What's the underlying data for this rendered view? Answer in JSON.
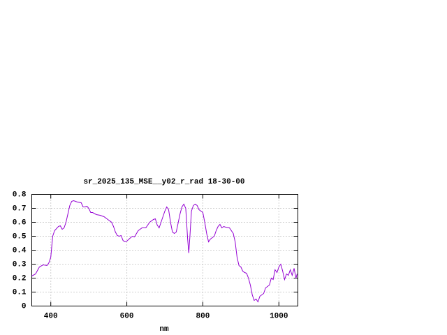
{
  "chart_data": {
    "type": "line",
    "title": "sr_2025_135_MSE__y02_r_rad 18-30-00",
    "x_label": "nm",
    "xlim": [
      350,
      1050
    ],
    "xticks": [
      400,
      600,
      800,
      1000
    ],
    "ylim": [
      0,
      0.8
    ],
    "yticks": [
      0,
      0.1,
      0.2,
      0.3,
      0.4,
      0.5,
      0.6,
      0.7,
      0.8
    ],
    "grid": true,
    "series": [
      {
        "color": "#9400d3",
        "x": [
          350,
          360,
          370,
          380,
          390,
          395,
          400,
          405,
          410,
          420,
          425,
          430,
          435,
          440,
          445,
          450,
          455,
          460,
          470,
          480,
          485,
          490,
          495,
          500,
          505,
          510,
          520,
          530,
          540,
          550,
          560,
          565,
          570,
          575,
          580,
          585,
          590,
          595,
          600,
          610,
          615,
          620,
          630,
          640,
          650,
          660,
          670,
          675,
          680,
          685,
          690,
          700,
          705,
          710,
          715,
          720,
          725,
          730,
          740,
          745,
          750,
          755,
          760,
          763,
          766,
          770,
          775,
          780,
          785,
          790,
          795,
          800,
          805,
          810,
          815,
          820,
          830,
          835,
          840,
          845,
          850,
          855,
          860,
          870,
          875,
          880,
          885,
          890,
          895,
          900,
          905,
          910,
          915,
          920,
          925,
          930,
          935,
          940,
          945,
          950,
          955,
          960,
          965,
          970,
          975,
          980,
          985,
          990,
          995,
          1000,
          1005,
          1010,
          1015,
          1020,
          1025,
          1030,
          1035,
          1040,
          1045,
          1048
        ],
        "values": [
          0.215,
          0.23,
          0.28,
          0.295,
          0.29,
          0.31,
          0.35,
          0.5,
          0.54,
          0.57,
          0.575,
          0.55,
          0.56,
          0.6,
          0.66,
          0.72,
          0.75,
          0.755,
          0.745,
          0.74,
          0.71,
          0.71,
          0.715,
          0.7,
          0.67,
          0.67,
          0.655,
          0.65,
          0.64,
          0.62,
          0.6,
          0.57,
          0.53,
          0.505,
          0.5,
          0.505,
          0.47,
          0.46,
          0.465,
          0.49,
          0.5,
          0.495,
          0.54,
          0.56,
          0.56,
          0.6,
          0.62,
          0.625,
          0.58,
          0.56,
          0.6,
          0.68,
          0.71,
          0.69,
          0.6,
          0.53,
          0.52,
          0.53,
          0.66,
          0.71,
          0.73,
          0.7,
          0.48,
          0.38,
          0.5,
          0.68,
          0.72,
          0.73,
          0.72,
          0.69,
          0.68,
          0.67,
          0.6,
          0.52,
          0.46,
          0.48,
          0.5,
          0.54,
          0.57,
          0.585,
          0.56,
          0.57,
          0.565,
          0.56,
          0.54,
          0.52,
          0.46,
          0.35,
          0.29,
          0.28,
          0.25,
          0.24,
          0.235,
          0.2,
          0.15,
          0.08,
          0.04,
          0.05,
          0.03,
          0.07,
          0.08,
          0.09,
          0.13,
          0.14,
          0.15,
          0.2,
          0.19,
          0.26,
          0.24,
          0.28,
          0.3,
          0.25,
          0.19,
          0.23,
          0.22,
          0.26,
          0.22,
          0.27,
          0.2,
          0.23
        ]
      }
    ]
  }
}
